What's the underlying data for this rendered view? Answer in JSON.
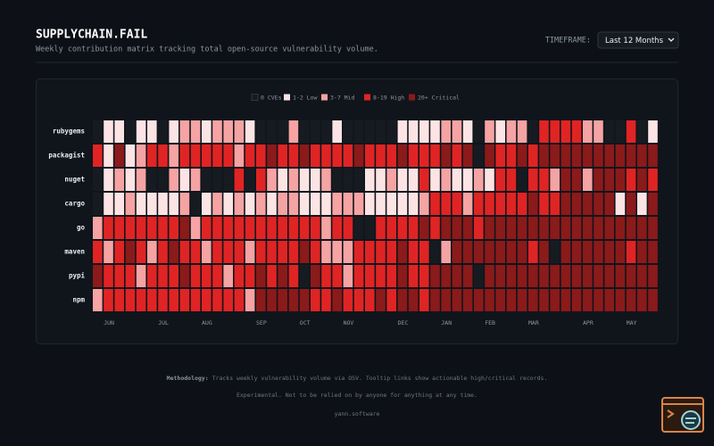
{
  "header": {
    "title": "SUPPLYCHAIN.FAIL",
    "subtitle": "Weekly contribution matrix tracking total open-source vulnerability volume."
  },
  "timeframe": {
    "label": "TIMEFRAME:",
    "selected": "Last 12 Months"
  },
  "legend": [
    "0 CVEs",
    "1-2 Low",
    "3-7 Mid",
    "8-19 High",
    "20+ Critical"
  ],
  "matrix": {
    "months": [
      "JUN",
      "JUL",
      "AUG",
      "SEP",
      "OCT",
      "NOV",
      "DEC",
      "JAN",
      "FEB",
      "MAR",
      "APR",
      "MAY"
    ],
    "rows": [
      {
        "name": "rubygems",
        "levels": [
          0,
          1,
          1,
          0,
          1,
          1,
          0,
          1,
          2,
          2,
          1,
          2,
          2,
          2,
          1,
          0,
          0,
          0,
          2,
          0,
          0,
          0,
          1,
          0,
          0,
          0,
          0,
          0,
          1,
          1,
          1,
          1,
          2,
          2,
          1,
          0,
          2,
          1,
          2,
          2,
          0,
          3,
          3,
          3,
          3,
          2,
          2,
          0,
          0,
          3,
          0,
          1
        ]
      },
      {
        "name": "packagist",
        "levels": [
          3,
          1,
          4,
          1,
          2,
          3,
          3,
          2,
          3,
          3,
          3,
          3,
          3,
          2,
          3,
          3,
          4,
          3,
          3,
          4,
          3,
          3,
          3,
          3,
          4,
          3,
          3,
          3,
          4,
          3,
          3,
          3,
          4,
          3,
          4,
          0,
          4,
          3,
          3,
          4,
          3,
          4,
          4,
          4,
          4,
          4,
          4,
          4,
          4,
          4,
          4,
          4
        ]
      },
      {
        "name": "nuget",
        "levels": [
          0,
          1,
          2,
          1,
          2,
          0,
          0,
          2,
          1,
          2,
          0,
          0,
          0,
          3,
          0,
          3,
          2,
          1,
          2,
          1,
          1,
          2,
          0,
          0,
          0,
          1,
          1,
          2,
          1,
          1,
          3,
          1,
          2,
          1,
          1,
          2,
          1,
          3,
          3,
          0,
          3,
          3,
          2,
          4,
          4,
          2,
          4,
          4,
          4,
          3,
          4,
          3
        ]
      },
      {
        "name": "cargo",
        "levels": [
          0,
          1,
          1,
          2,
          1,
          1,
          1,
          1,
          2,
          0,
          1,
          2,
          1,
          2,
          1,
          2,
          1,
          2,
          2,
          1,
          1,
          1,
          2,
          2,
          2,
          1,
          1,
          1,
          1,
          1,
          2,
          3,
          3,
          3,
          2,
          3,
          3,
          3,
          3,
          3,
          4,
          3,
          3,
          4,
          4,
          4,
          4,
          4,
          1,
          4,
          1,
          4
        ]
      },
      {
        "name": "go",
        "levels": [
          2,
          3,
          3,
          3,
          3,
          3,
          3,
          3,
          4,
          2,
          3,
          3,
          3,
          3,
          3,
          3,
          3,
          3,
          3,
          3,
          3,
          2,
          3,
          3,
          0,
          0,
          3,
          3,
          3,
          3,
          4,
          3,
          4,
          4,
          4,
          3,
          4,
          4,
          4,
          4,
          4,
          4,
          4,
          4,
          4,
          4,
          4,
          4,
          4,
          4,
          4,
          4
        ]
      },
      {
        "name": "maven",
        "levels": [
          3,
          2,
          3,
          4,
          3,
          2,
          3,
          4,
          3,
          3,
          2,
          3,
          3,
          3,
          2,
          3,
          3,
          3,
          3,
          4,
          3,
          2,
          2,
          2,
          3,
          3,
          3,
          3,
          4,
          3,
          3,
          0,
          2,
          4,
          4,
          4,
          4,
          4,
          4,
          4,
          3,
          4,
          0,
          4,
          4,
          4,
          4,
          4,
          4,
          3,
          4,
          4
        ]
      },
      {
        "name": "pypi",
        "levels": [
          4,
          3,
          3,
          3,
          2,
          3,
          3,
          3,
          4,
          3,
          3,
          3,
          2,
          3,
          3,
          4,
          3,
          4,
          3,
          0,
          4,
          3,
          3,
          2,
          3,
          3,
          3,
          3,
          4,
          3,
          3,
          4,
          4,
          4,
          4,
          0,
          4,
          4,
          4,
          4,
          4,
          4,
          4,
          4,
          4,
          4,
          4,
          4,
          4,
          4,
          4,
          4
        ]
      },
      {
        "name": "npm",
        "levels": [
          2,
          3,
          3,
          3,
          3,
          3,
          3,
          3,
          3,
          3,
          3,
          3,
          3,
          3,
          2,
          4,
          4,
          4,
          4,
          4,
          3,
          3,
          4,
          3,
          3,
          3,
          4,
          3,
          4,
          4,
          3,
          4,
          4,
          4,
          4,
          4,
          4,
          4,
          4,
          4,
          4,
          4,
          4,
          4,
          4,
          4,
          4,
          4,
          4,
          4,
          4,
          4
        ]
      }
    ]
  },
  "footer": {
    "methodology_label": "Methodology:",
    "methodology": "Tracks weekly vulnerability volume via OSV. Tooltip links show actionable high/critical records.",
    "disclaimer": "Experimental. Not to be relied on by anyone for anything at any time.",
    "credit": "yann.software"
  }
}
